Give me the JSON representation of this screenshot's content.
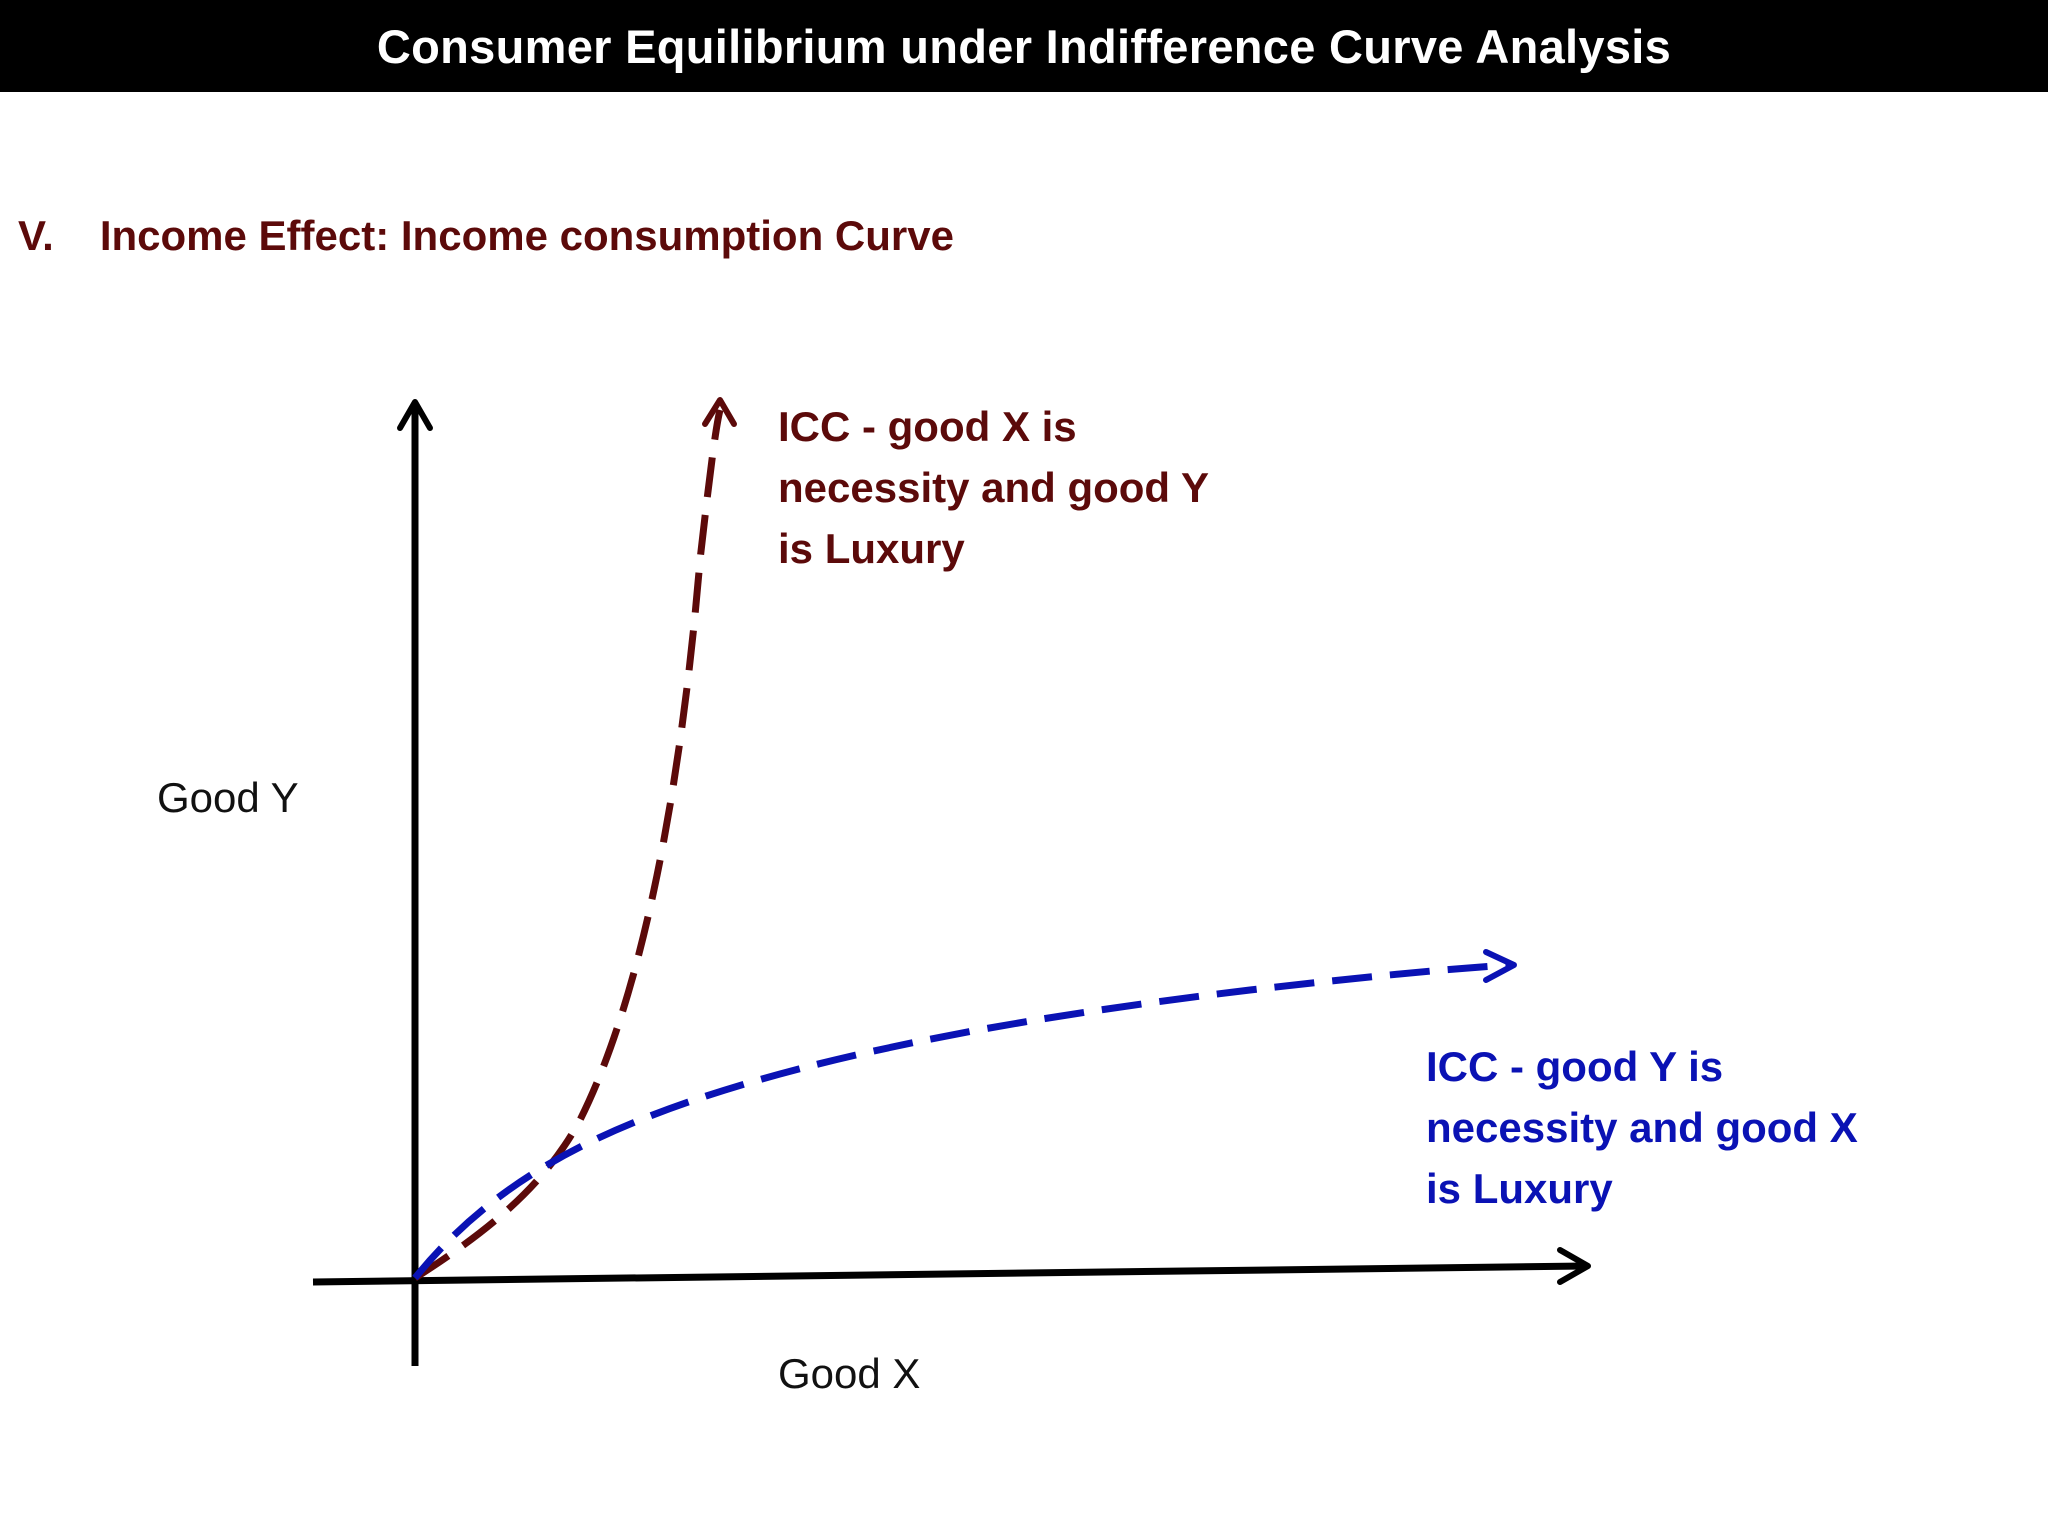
{
  "header": {
    "title": "Consumer Equilibrium under Indifference Curve Analysis"
  },
  "section": {
    "number": "V.",
    "heading": "Income Effect: Income consumption Curve"
  },
  "axes": {
    "y_label": "Good Y",
    "x_label": "Good X"
  },
  "curves": [
    {
      "lines": [
        "ICC - good X is",
        "necessity and good Y",
        "is Luxury"
      ],
      "color": "#5c0a0a",
      "style": "dashed"
    },
    {
      "lines": [
        "ICC - good Y is",
        "necessity and good X",
        "is Luxury"
      ],
      "color": "#0a12b4",
      "style": "dashed"
    }
  ],
  "colors": {
    "axis": "#000000",
    "heading": "#5c0a0a",
    "title_bar": "#000000"
  }
}
